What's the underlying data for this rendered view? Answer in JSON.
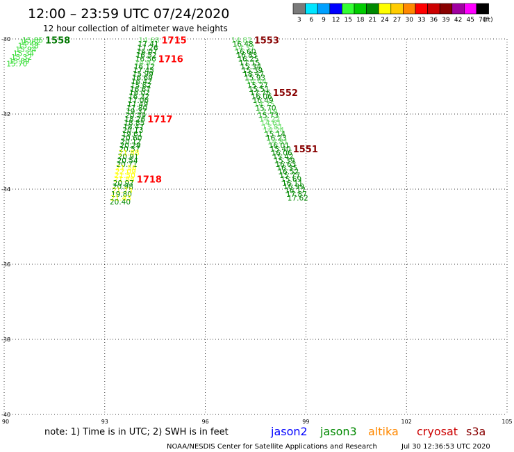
{
  "header": {
    "title": "12:00 – 23:59 UTC 07/24/2020",
    "subtitle": "12 hour collection of altimeter wave heights"
  },
  "legend": {
    "unit": "(ft)",
    "bins": [
      {
        "label": "3",
        "color": "#7a7a7a"
      },
      {
        "label": "6",
        "color": "#00e5ff"
      },
      {
        "label": "9",
        "color": "#00a0ff"
      },
      {
        "label": "12",
        "color": "#0000ff"
      },
      {
        "label": "15",
        "color": "#33ff33"
      },
      {
        "label": "18",
        "color": "#00cc00"
      },
      {
        "label": "21",
        "color": "#008800"
      },
      {
        "label": "24",
        "color": "#ffff00"
      },
      {
        "label": "27",
        "color": "#ffcc00"
      },
      {
        "label": "30",
        "color": "#ff8800"
      },
      {
        "label": "33",
        "color": "#ff0000"
      },
      {
        "label": "36",
        "color": "#cc0000"
      },
      {
        "label": "39",
        "color": "#880000"
      },
      {
        "label": "42",
        "color": "#a000a0"
      },
      {
        "label": "45",
        "color": "#ff00ff"
      },
      {
        "label": "70",
        "color": "#000000"
      }
    ]
  },
  "map": {
    "lon_ticks": [
      "90",
      "93",
      "96",
      "99",
      "102",
      "105"
    ],
    "lat_ticks": [
      "-30",
      "-32",
      "-34",
      "-36",
      "-38",
      "-40"
    ],
    "lon_range": [
      90,
      105
    ],
    "lat_range": [
      -30,
      -40
    ],
    "grid": "dotted"
  },
  "tracks": [
    {
      "label": "1558",
      "label_color": "#007700",
      "readings": [
        {
          "v": "15.85",
          "lon": 90.85,
          "lat": -30.03,
          "c": "#33dd33"
        },
        {
          "v": "15.62",
          "lon": 90.78,
          "lat": -30.08,
          "c": "#33dd33"
        },
        {
          "v": "15.58",
          "lon": 90.72,
          "lat": -30.18,
          "c": "#33dd33"
        },
        {
          "v": "15.94",
          "lon": 90.65,
          "lat": -30.28,
          "c": "#33dd33"
        },
        {
          "v": "15.34",
          "lon": 90.58,
          "lat": -30.38,
          "c": "#33dd33"
        },
        {
          "v": "15.32",
          "lon": 90.52,
          "lat": -30.48,
          "c": "#33dd33"
        },
        {
          "v": "15.89",
          "lon": 90.45,
          "lat": -30.58,
          "c": "#33dd33"
        },
        {
          "v": "15.70",
          "lon": 90.38,
          "lat": -30.66,
          "c": "#33dd33"
        }
      ]
    },
    {
      "label": "1715",
      "label_color": "#ff0000",
      "readings": [
        {
          "v": "14.68",
          "lon": 94.32,
          "lat": -30.03,
          "c": "#66dd66"
        },
        {
          "v": "17.41",
          "lon": 94.3,
          "lat": -30.13,
          "c": "#008800"
        },
        {
          "v": "17.26",
          "lon": 94.28,
          "lat": -30.23,
          "c": "#008800"
        },
        {
          "v": "16.07",
          "lon": 94.26,
          "lat": -30.33,
          "c": "#008800"
        },
        {
          "v": "16.52",
          "lon": 94.24,
          "lat": -30.43,
          "c": "#008800"
        }
      ]
    },
    {
      "label": "1716",
      "label_color": "#ff0000",
      "readings": [
        {
          "v": "16.56",
          "lon": 94.22,
          "lat": -30.53,
          "c": "#008800"
        },
        {
          "v": "14.92",
          "lon": 94.2,
          "lat": -30.63,
          "c": "#66dd66"
        },
        {
          "v": "16.12",
          "lon": 94.18,
          "lat": -30.73,
          "c": "#008800"
        },
        {
          "v": "17.45",
          "lon": 94.16,
          "lat": -30.83,
          "c": "#008800"
        },
        {
          "v": "15.99",
          "lon": 94.14,
          "lat": -30.93,
          "c": "#008800"
        },
        {
          "v": "16.69",
          "lon": 94.12,
          "lat": -31.03,
          "c": "#008800"
        },
        {
          "v": "16.42",
          "lon": 94.1,
          "lat": -31.13,
          "c": "#008800"
        },
        {
          "v": "15.62",
          "lon": 94.08,
          "lat": -31.23,
          "c": "#008800"
        },
        {
          "v": "16.67",
          "lon": 94.06,
          "lat": -31.33,
          "c": "#008800"
        },
        {
          "v": "16.02",
          "lon": 94.04,
          "lat": -31.43,
          "c": "#008800"
        },
        {
          "v": "16.32",
          "lon": 94.02,
          "lat": -31.53,
          "c": "#008800"
        },
        {
          "v": "17.06",
          "lon": 94.0,
          "lat": -31.63,
          "c": "#008800"
        },
        {
          "v": "17.49",
          "lon": 93.98,
          "lat": -31.73,
          "c": "#008800"
        },
        {
          "v": "17.80",
          "lon": 93.96,
          "lat": -31.83,
          "c": "#008800"
        },
        {
          "v": "19.37",
          "lon": 93.94,
          "lat": -31.93,
          "c": "#008800"
        },
        {
          "v": "20.39",
          "lon": 93.92,
          "lat": -32.03,
          "c": "#008800"
        }
      ]
    },
    {
      "label": "1717",
      "label_color": "#ff0000",
      "readings": [
        {
          "v": "18.26",
          "lon": 93.9,
          "lat": -32.13,
          "c": "#008800"
        },
        {
          "v": "18.85",
          "lon": 93.88,
          "lat": -32.23,
          "c": "#008800"
        },
        {
          "v": "18.47",
          "lon": 93.86,
          "lat": -32.33,
          "c": "#008800"
        },
        {
          "v": "20.13",
          "lon": 93.84,
          "lat": -32.43,
          "c": "#008800"
        },
        {
          "v": "19.61",
          "lon": 93.82,
          "lat": -32.53,
          "c": "#008800"
        },
        {
          "v": "20.60",
          "lon": 93.8,
          "lat": -32.63,
          "c": "#008800"
        },
        {
          "v": "20.12",
          "lon": 93.78,
          "lat": -32.73,
          "c": "#008800"
        },
        {
          "v": "20.29",
          "lon": 93.76,
          "lat": -32.83,
          "c": "#008800"
        },
        {
          "v": "20.57",
          "lon": 93.74,
          "lat": -32.93,
          "c": "#008800"
        },
        {
          "v": "21.88",
          "lon": 93.72,
          "lat": -33.03,
          "c": "#ffff00"
        },
        {
          "v": "20.91",
          "lon": 93.7,
          "lat": -33.13,
          "c": "#008800"
        },
        {
          "v": "20.54",
          "lon": 93.68,
          "lat": -33.23,
          "c": "#008800"
        },
        {
          "v": "20.71",
          "lon": 93.66,
          "lat": -33.33,
          "c": "#008800"
        },
        {
          "v": "21.56",
          "lon": 93.64,
          "lat": -33.43,
          "c": "#ffff00"
        },
        {
          "v": "22.09",
          "lon": 93.62,
          "lat": -33.53,
          "c": "#ffff00"
        },
        {
          "v": "21.50",
          "lon": 93.6,
          "lat": -33.63,
          "c": "#ffff00"
        }
      ]
    },
    {
      "label": "1718",
      "label_color": "#ff0000",
      "readings": [
        {
          "v": "21.88",
          "lon": 93.58,
          "lat": -33.73,
          "c": "#ffff00"
        },
        {
          "v": "20.97",
          "lon": 93.56,
          "lat": -33.83,
          "c": "#008800"
        },
        {
          "v": "20.98",
          "lon": 93.54,
          "lat": -33.93,
          "c": "#008800"
        },
        {
          "v": "21.73",
          "lon": 93.52,
          "lat": -34.03,
          "c": "#ffff00"
        },
        {
          "v": "19.80",
          "lon": 93.5,
          "lat": -34.13,
          "c": "#008800"
        },
        {
          "v": "21.43",
          "lon": 93.48,
          "lat": -34.23,
          "c": "#ffff00"
        },
        {
          "v": "20.40",
          "lon": 93.46,
          "lat": -34.33,
          "c": "#008800"
        }
      ]
    },
    {
      "label": "1553",
      "label_color": "#880000",
      "readings": [
        {
          "v": "14.82",
          "lon": 97.08,
          "lat": -30.03,
          "c": "#66dd66"
        },
        {
          "v": "16.48",
          "lon": 97.12,
          "lat": -30.13,
          "c": "#008800"
        },
        {
          "v": "14.37",
          "lon": 97.16,
          "lat": -30.23,
          "c": "#66dd66"
        },
        {
          "v": "16.60",
          "lon": 97.2,
          "lat": -30.33,
          "c": "#008800"
        },
        {
          "v": "16.83",
          "lon": 97.24,
          "lat": -30.43,
          "c": "#008800"
        },
        {
          "v": "16.25",
          "lon": 97.28,
          "lat": -30.53,
          "c": "#008800"
        },
        {
          "v": "17.15",
          "lon": 97.32,
          "lat": -30.63,
          "c": "#008800"
        },
        {
          "v": "15.34",
          "lon": 97.36,
          "lat": -30.73,
          "c": "#008800"
        },
        {
          "v": "15.39",
          "lon": 97.4,
          "lat": -30.83,
          "c": "#008800"
        },
        {
          "v": "18.47",
          "lon": 97.44,
          "lat": -30.93,
          "c": "#008800"
        },
        {
          "v": "15.93",
          "lon": 97.48,
          "lat": -31.03,
          "c": "#008800"
        },
        {
          "v": "14.44",
          "lon": 97.52,
          "lat": -31.13,
          "c": "#66dd66"
        },
        {
          "v": "15.27",
          "lon": 97.56,
          "lat": -31.23,
          "c": "#008800"
        },
        {
          "v": "15.51",
          "lon": 97.6,
          "lat": -31.33,
          "c": "#008800"
        }
      ]
    },
    {
      "label": "1552",
      "label_color": "#880000",
      "readings": [
        {
          "v": "17.76",
          "lon": 97.64,
          "lat": -31.43,
          "c": "#008800"
        },
        {
          "v": "16.06",
          "lon": 97.68,
          "lat": -31.53,
          "c": "#008800"
        },
        {
          "v": "16.49",
          "lon": 97.72,
          "lat": -31.63,
          "c": "#008800"
        },
        {
          "v": "14.75",
          "lon": 97.76,
          "lat": -31.73,
          "c": "#66dd66"
        },
        {
          "v": "15.70",
          "lon": 97.8,
          "lat": -31.83,
          "c": "#008800"
        },
        {
          "v": "13.19",
          "lon": 97.84,
          "lat": -31.93,
          "c": "#66dd66"
        },
        {
          "v": "15.73",
          "lon": 97.88,
          "lat": -32.03,
          "c": "#008800"
        },
        {
          "v": "14.22",
          "lon": 97.92,
          "lat": -32.13,
          "c": "#66dd66"
        },
        {
          "v": "14.61",
          "lon": 97.96,
          "lat": -32.23,
          "c": "#66dd66"
        },
        {
          "v": "13.81",
          "lon": 98.0,
          "lat": -32.33,
          "c": "#66dd66"
        },
        {
          "v": "14.24",
          "lon": 98.04,
          "lat": -32.43,
          "c": "#66dd66"
        },
        {
          "v": "15.14",
          "lon": 98.08,
          "lat": -32.53,
          "c": "#008800"
        },
        {
          "v": "16.23",
          "lon": 98.12,
          "lat": -32.63,
          "c": "#008800"
        },
        {
          "v": "14.81",
          "lon": 98.16,
          "lat": -32.73,
          "c": "#66dd66"
        },
        {
          "v": "16.01",
          "lon": 98.2,
          "lat": -32.83,
          "c": "#008800"
        }
      ]
    },
    {
      "label": "1551",
      "label_color": "#880000",
      "readings": [
        {
          "v": "15.40",
          "lon": 98.24,
          "lat": -32.93,
          "c": "#008800"
        },
        {
          "v": "16.06",
          "lon": 98.28,
          "lat": -33.03,
          "c": "#008800"
        },
        {
          "v": "15.42",
          "lon": 98.32,
          "lat": -33.13,
          "c": "#008800"
        },
        {
          "v": "15.39",
          "lon": 98.36,
          "lat": -33.23,
          "c": "#008800"
        },
        {
          "v": "16.63",
          "lon": 98.4,
          "lat": -33.33,
          "c": "#008800"
        },
        {
          "v": "16.35",
          "lon": 98.44,
          "lat": -33.43,
          "c": "#008800"
        },
        {
          "v": "16.52",
          "lon": 98.48,
          "lat": -33.53,
          "c": "#008800"
        },
        {
          "v": "15.77",
          "lon": 98.52,
          "lat": -33.63,
          "c": "#008800"
        },
        {
          "v": "15.69",
          "lon": 98.56,
          "lat": -33.73,
          "c": "#008800"
        },
        {
          "v": "16.11",
          "lon": 98.6,
          "lat": -33.83,
          "c": "#008800"
        },
        {
          "v": "16.99",
          "lon": 98.64,
          "lat": -33.93,
          "c": "#008800"
        },
        {
          "v": "16.17",
          "lon": 98.68,
          "lat": -34.03,
          "c": "#008800"
        },
        {
          "v": "17.87",
          "lon": 98.72,
          "lat": -34.13,
          "c": "#008800"
        },
        {
          "v": "17.62",
          "lon": 98.76,
          "lat": -34.23,
          "c": "#008800"
        }
      ]
    }
  ],
  "footer": {
    "note": "note: 1) Time is in UTC; 2) SWH is in feet",
    "satellites": [
      {
        "name": "jason2",
        "color": "#0000ff"
      },
      {
        "name": "jason3",
        "color": "#008800"
      },
      {
        "name": "altika",
        "color": "#ff8800"
      },
      {
        "name": "cryosat",
        "color": "#cc0000"
      },
      {
        "name": "s3a",
        "color": "#880000"
      }
    ],
    "credit": "NOAA/NESDIS Center for Satellite Applications and Research",
    "timestamp": "Jul 30 12:36:53 UTC 2020"
  }
}
